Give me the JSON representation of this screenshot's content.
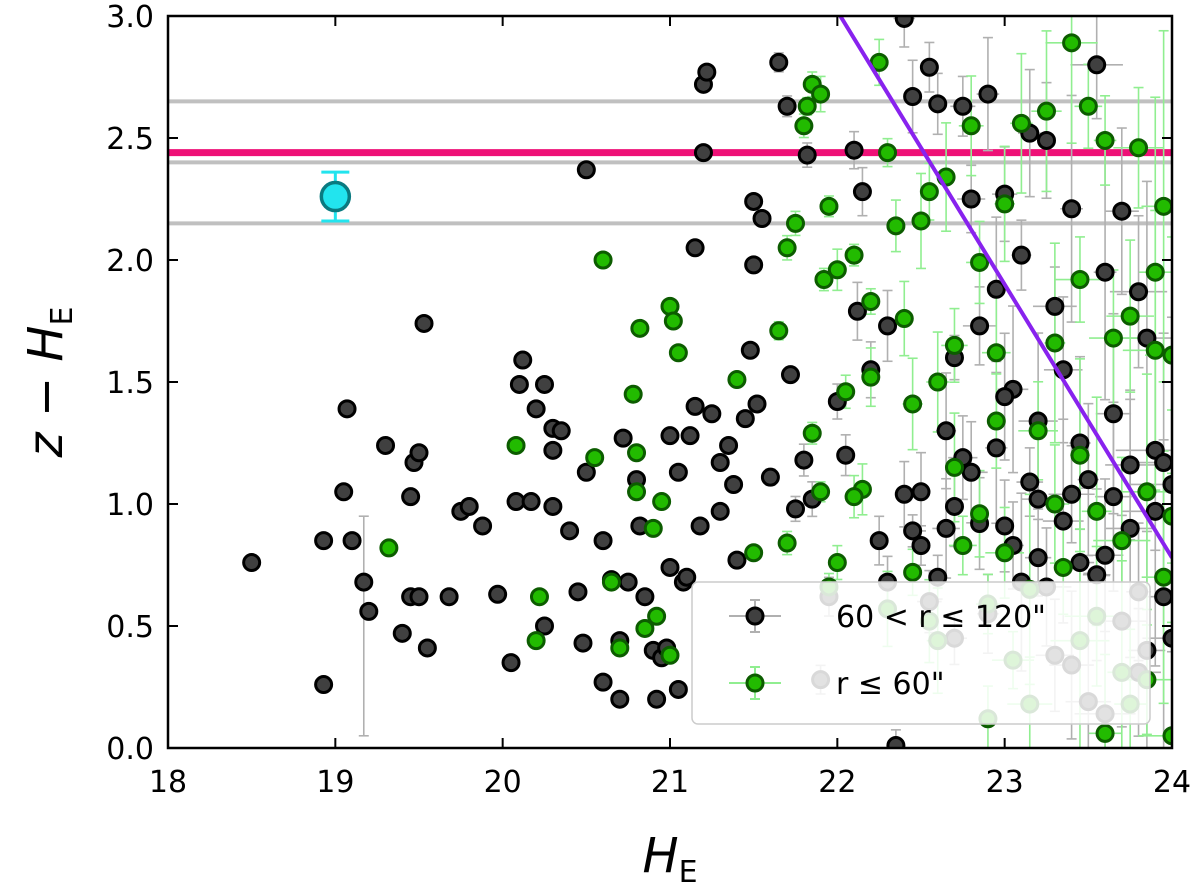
{
  "chart_data": {
    "type": "scatter",
    "title": "",
    "xlabel": "H",
    "xlabel_sub": "E",
    "ylabel": "z − H",
    "ylabel_sub": "E",
    "xlim": [
      18,
      24
    ],
    "ylim": [
      0.0,
      3.0
    ],
    "xticks": [
      18,
      19,
      20,
      21,
      22,
      23,
      24
    ],
    "xtick_labels": [
      "18",
      "19",
      "20",
      "21",
      "22",
      "23",
      "24"
    ],
    "yticks": [
      0.0,
      0.5,
      1.0,
      1.5,
      2.0,
      2.5,
      3.0
    ],
    "ytick_labels": [
      "0.0",
      "0.5",
      "1.0",
      "1.5",
      "2.0",
      "2.5",
      "3.0"
    ],
    "grid": false,
    "legend_position": "bottom-right",
    "colors": {
      "outer_face": "#404040",
      "outer_edge": "#000000",
      "outer_err": "#b0b0b0",
      "inner_face": "#22bb00",
      "inner_edge": "#0c5c00",
      "inner_err": "#90ee90",
      "highlight_face": "#22e4ee",
      "highlight_edge": "#0a7a80",
      "magenta_line": "#ee1177",
      "gray_lines": "#c0c0c0",
      "diag_line": "#8822ee"
    },
    "reference_lines": {
      "magenta_y": 2.44,
      "gray_y": [
        2.65,
        2.4,
        2.15
      ],
      "diagonal": {
        "x": [
          22.0,
          24.0
        ],
        "y": [
          3.02,
          0.78
        ]
      }
    },
    "highlight_point": {
      "x": 19.0,
      "y": 2.26,
      "yerr": 0.1
    },
    "series": [
      {
        "name": "60 < r ≤ 120\"",
        "points": [
          [
            18.5,
            0.76
          ],
          [
            18.93,
            0.26
          ],
          [
            18.93,
            0.85
          ],
          [
            19.05,
            1.05
          ],
          [
            19.07,
            1.39
          ],
          [
            19.1,
            0.85
          ],
          [
            19.17,
            0.68
          ],
          [
            19.2,
            0.56
          ],
          [
            19.3,
            1.24
          ],
          [
            19.4,
            0.47
          ],
          [
            19.45,
            1.03
          ],
          [
            19.45,
            0.62
          ],
          [
            19.47,
            1.17
          ],
          [
            19.5,
            1.21
          ],
          [
            19.5,
            0.62
          ],
          [
            19.53,
            1.74
          ],
          [
            19.55,
            0.41
          ],
          [
            19.68,
            0.62
          ],
          [
            19.75,
            0.97
          ],
          [
            19.8,
            0.99
          ],
          [
            19.88,
            0.91
          ],
          [
            19.97,
            0.63
          ],
          [
            20.05,
            0.35
          ],
          [
            20.08,
            1.01
          ],
          [
            20.1,
            1.49
          ],
          [
            20.12,
            1.59
          ],
          [
            20.17,
            1.01
          ],
          [
            20.2,
            1.39
          ],
          [
            20.25,
            1.49
          ],
          [
            20.25,
            0.5
          ],
          [
            20.3,
            1.22
          ],
          [
            20.3,
            0.99
          ],
          [
            20.3,
            1.31
          ],
          [
            20.35,
            1.3
          ],
          [
            20.4,
            0.89
          ],
          [
            20.45,
            0.64
          ],
          [
            20.48,
            0.43
          ],
          [
            20.5,
            1.13
          ],
          [
            20.5,
            2.37
          ],
          [
            20.6,
            0.85
          ],
          [
            20.6,
            0.27
          ],
          [
            20.65,
            0.69
          ],
          [
            20.7,
            0.44
          ],
          [
            20.7,
            0.2
          ],
          [
            20.72,
            1.27
          ],
          [
            20.75,
            0.68
          ],
          [
            20.8,
            1.1
          ],
          [
            20.82,
            0.91
          ],
          [
            20.85,
            0.62
          ],
          [
            20.9,
            0.4
          ],
          [
            20.92,
            0.2
          ],
          [
            20.95,
            0.37
          ],
          [
            20.98,
            0.41
          ],
          [
            21.0,
            0.74
          ],
          [
            21.0,
            1.28
          ],
          [
            21.05,
            0.24
          ],
          [
            21.05,
            1.13
          ],
          [
            21.08,
            0.68
          ],
          [
            21.1,
            0.7
          ],
          [
            21.12,
            1.28
          ],
          [
            21.15,
            2.05
          ],
          [
            21.15,
            1.4
          ],
          [
            21.18,
            0.91
          ],
          [
            21.2,
            2.44
          ],
          [
            21.2,
            2.72
          ],
          [
            21.22,
            2.77
          ],
          [
            21.25,
            1.37
          ],
          [
            21.3,
            1.17
          ],
          [
            21.3,
            0.97
          ],
          [
            21.35,
            1.24
          ],
          [
            21.38,
            1.08
          ],
          [
            21.4,
            0.77
          ],
          [
            21.45,
            1.35
          ],
          [
            21.48,
            1.63
          ],
          [
            21.5,
            2.24
          ],
          [
            21.5,
            1.98
          ],
          [
            21.52,
            1.41
          ],
          [
            21.55,
            2.17
          ],
          [
            21.6,
            1.11
          ],
          [
            21.65,
            2.81
          ],
          [
            21.7,
            2.63
          ],
          [
            21.72,
            1.53
          ],
          [
            21.75,
            0.98
          ],
          [
            21.8,
            1.18
          ],
          [
            21.82,
            2.43
          ],
          [
            21.85,
            1.02
          ],
          [
            21.9,
            0.28
          ],
          [
            21.95,
            0.62
          ],
          [
            22.0,
            1.42
          ],
          [
            22.05,
            1.2
          ],
          [
            22.1,
            2.45
          ],
          [
            22.12,
            1.79
          ],
          [
            22.15,
            2.28
          ],
          [
            22.2,
            1.55
          ],
          [
            22.25,
            0.85
          ],
          [
            22.3,
            1.73
          ],
          [
            22.35,
            0.01
          ],
          [
            22.4,
            2.99
          ],
          [
            22.45,
            2.67
          ],
          [
            22.5,
            1.05
          ],
          [
            22.55,
            2.79
          ],
          [
            22.6,
            2.64
          ],
          [
            22.65,
            1.3
          ],
          [
            22.7,
            1.6
          ],
          [
            22.75,
            2.63
          ],
          [
            22.8,
            2.25
          ],
          [
            22.85,
            1.73
          ],
          [
            22.9,
            2.68
          ],
          [
            22.95,
            1.88
          ],
          [
            23.0,
            2.27
          ],
          [
            23.05,
            1.47
          ],
          [
            23.1,
            2.02
          ],
          [
            23.15,
            2.52
          ],
          [
            23.2,
            1.02
          ],
          [
            23.25,
            2.49
          ],
          [
            23.3,
            1.81
          ],
          [
            23.35,
            1.55
          ],
          [
            23.4,
            2.21
          ],
          [
            23.45,
            0.76
          ],
          [
            23.5,
            1.1
          ],
          [
            23.55,
            2.8
          ],
          [
            23.6,
            1.95
          ],
          [
            23.65,
            1.37
          ],
          [
            23.7,
            2.2
          ],
          [
            23.75,
            0.9
          ],
          [
            23.8,
            1.87
          ],
          [
            23.85,
            1.68
          ],
          [
            23.9,
            1.22
          ],
          [
            23.95,
            0.62
          ],
          [
            22.6,
            0.7
          ],
          [
            22.7,
            0.45
          ],
          [
            22.8,
            1.13
          ],
          [
            22.9,
            0.55
          ],
          [
            23.0,
            0.91
          ],
          [
            23.1,
            0.68
          ],
          [
            23.2,
            1.34
          ],
          [
            23.3,
            0.38
          ],
          [
            23.4,
            1.04
          ],
          [
            23.5,
            0.19
          ],
          [
            23.6,
            0.79
          ],
          [
            23.7,
            0.52
          ],
          [
            23.8,
            0.31
          ],
          [
            23.9,
            0.97
          ],
          [
            24.0,
            0.45
          ],
          [
            22.4,
            1.04
          ],
          [
            22.5,
            0.83
          ],
          [
            22.55,
            0.6
          ],
          [
            22.65,
            0.9
          ],
          [
            22.75,
            1.19
          ],
          [
            22.85,
            0.92
          ],
          [
            22.95,
            1.23
          ],
          [
            23.05,
            0.83
          ],
          [
            23.15,
            1.09
          ],
          [
            23.25,
            0.66
          ],
          [
            23.35,
            0.93
          ],
          [
            23.45,
            1.25
          ],
          [
            23.55,
            0.71
          ],
          [
            23.65,
            1.03
          ],
          [
            23.75,
            1.16
          ],
          [
            23.85,
            0.4
          ],
          [
            23.95,
            1.17
          ],
          [
            22.3,
            0.68
          ],
          [
            22.45,
            0.89
          ],
          [
            22.7,
            0.99
          ],
          [
            23.0,
            1.44
          ],
          [
            23.2,
            0.78
          ],
          [
            23.4,
            0.34
          ],
          [
            23.6,
            0.14
          ],
          [
            23.8,
            0.64
          ],
          [
            24.0,
            1.08
          ]
        ]
      },
      {
        "name": "r ≤ 60\"",
        "points": [
          [
            19.32,
            0.82
          ],
          [
            20.08,
            1.24
          ],
          [
            20.2,
            0.44
          ],
          [
            20.22,
            0.62
          ],
          [
            20.55,
            1.19
          ],
          [
            20.6,
            2.0
          ],
          [
            20.65,
            0.68
          ],
          [
            20.7,
            0.41
          ],
          [
            20.78,
            1.45
          ],
          [
            20.8,
            1.05
          ],
          [
            20.8,
            1.21
          ],
          [
            20.82,
            1.72
          ],
          [
            20.85,
            0.49
          ],
          [
            20.9,
            0.9
          ],
          [
            20.92,
            0.54
          ],
          [
            20.95,
            1.01
          ],
          [
            21.0,
            1.81
          ],
          [
            21.0,
            0.38
          ],
          [
            21.02,
            1.75
          ],
          [
            21.05,
            1.62
          ],
          [
            21.4,
            1.51
          ],
          [
            21.5,
            0.8
          ],
          [
            21.65,
            1.71
          ],
          [
            21.7,
            2.05
          ],
          [
            21.75,
            2.15
          ],
          [
            21.8,
            2.55
          ],
          [
            21.82,
            2.63
          ],
          [
            21.85,
            2.72
          ],
          [
            21.9,
            2.68
          ],
          [
            21.92,
            1.92
          ],
          [
            21.95,
            2.22
          ],
          [
            22.0,
            1.96
          ],
          [
            22.05,
            1.46
          ],
          [
            22.1,
            2.02
          ],
          [
            22.15,
            1.06
          ],
          [
            22.2,
            1.83
          ],
          [
            22.25,
            2.81
          ],
          [
            22.3,
            2.44
          ],
          [
            22.35,
            2.14
          ],
          [
            22.4,
            1.76
          ],
          [
            22.45,
            1.41
          ],
          [
            22.5,
            2.16
          ],
          [
            22.55,
            2.28
          ],
          [
            22.6,
            0.44
          ],
          [
            22.65,
            2.34
          ],
          [
            22.7,
            1.65
          ],
          [
            22.75,
            0.83
          ],
          [
            22.8,
            2.55
          ],
          [
            22.85,
            1.99
          ],
          [
            22.9,
            0.59
          ],
          [
            22.95,
            1.34
          ],
          [
            23.0,
            2.23
          ],
          [
            23.05,
            0.36
          ],
          [
            23.1,
            2.56
          ],
          [
            23.15,
            0.18
          ],
          [
            23.2,
            1.3
          ],
          [
            23.25,
            2.61
          ],
          [
            23.3,
            1.66
          ],
          [
            23.35,
            0.74
          ],
          [
            23.4,
            2.89
          ],
          [
            23.45,
            1.2
          ],
          [
            23.5,
            2.63
          ],
          [
            23.55,
            0.54
          ],
          [
            23.6,
            2.49
          ],
          [
            23.65,
            1.68
          ],
          [
            23.7,
            0.31
          ],
          [
            23.75,
            1.77
          ],
          [
            23.8,
            2.46
          ],
          [
            23.85,
            0.28
          ],
          [
            23.9,
            1.63
          ],
          [
            23.95,
            2.22
          ],
          [
            24.0,
            0.05
          ],
          [
            21.7,
            0.84
          ],
          [
            21.9,
            1.05
          ],
          [
            22.0,
            0.76
          ],
          [
            22.1,
            1.03
          ],
          [
            22.3,
            0.57
          ],
          [
            22.45,
            0.72
          ],
          [
            22.55,
            0.52
          ],
          [
            22.7,
            1.15
          ],
          [
            22.85,
            0.96
          ],
          [
            23.0,
            0.8
          ],
          [
            23.15,
            0.65
          ],
          [
            23.3,
            1.0
          ],
          [
            23.45,
            0.44
          ],
          [
            23.55,
            0.97
          ],
          [
            23.7,
            0.85
          ],
          [
            23.85,
            1.05
          ],
          [
            23.95,
            0.7
          ],
          [
            22.2,
            1.52
          ],
          [
            22.6,
            1.5
          ],
          [
            22.95,
            1.62
          ],
          [
            23.45,
            1.92
          ],
          [
            23.9,
            1.95
          ],
          [
            24.0,
            1.61
          ],
          [
            24.0,
            0.95
          ],
          [
            23.6,
            0.06
          ],
          [
            23.75,
            0.18
          ],
          [
            22.9,
            0.12
          ],
          [
            21.85,
            1.29
          ],
          [
            21.95,
            0.66
          ]
        ]
      }
    ]
  },
  "legend": {
    "outer_label": "60 < r ≤ 120\"",
    "inner_label": "r ≤ 60\""
  }
}
